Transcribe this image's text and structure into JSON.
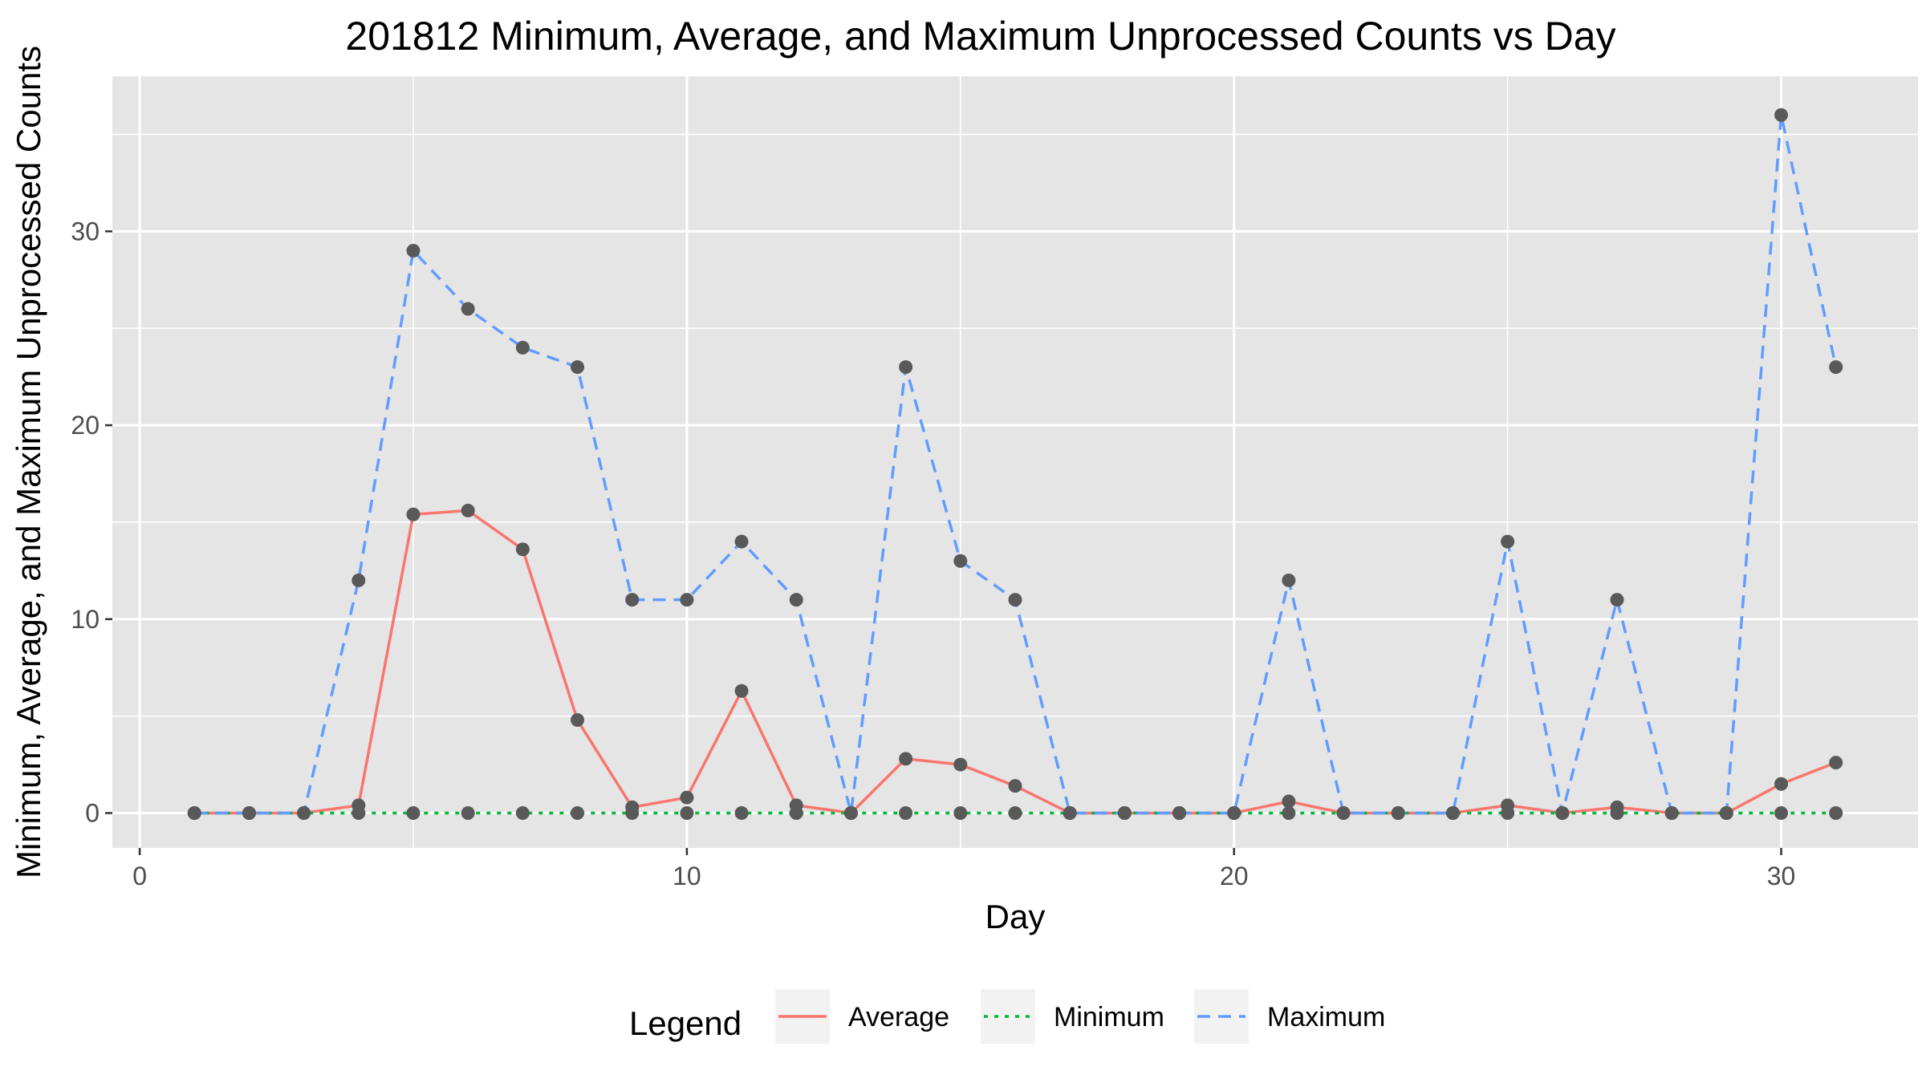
{
  "chart_data": {
    "type": "line",
    "title": "201812 Minimum, Average, and Maximum Unprocessed Counts vs Day",
    "xlabel": "Day",
    "ylabel": "Minimum, Average, and Maximum Unprocessed Counts",
    "xlim": [
      -0.5,
      32.5
    ],
    "ylim": [
      -1.8,
      38
    ],
    "x_ticks": [
      0,
      10,
      20,
      30
    ],
    "y_ticks": [
      0,
      10,
      20,
      30
    ],
    "grid": true,
    "legend": {
      "title": "Legend",
      "position": "bottom"
    },
    "x": [
      1,
      2,
      3,
      4,
      5,
      6,
      7,
      8,
      9,
      10,
      11,
      12,
      13,
      14,
      15,
      16,
      17,
      18,
      19,
      20,
      21,
      22,
      23,
      24,
      25,
      26,
      27,
      28,
      29,
      30,
      31
    ],
    "series": [
      {
        "name": "Average",
        "color": "#F8766D",
        "dash": "solid",
        "values": [
          0,
          0,
          0,
          0.4,
          15.4,
          15.6,
          13.6,
          4.8,
          0.3,
          0.8,
          6.3,
          0.4,
          0,
          2.8,
          2.5,
          1.4,
          0,
          0,
          0,
          0,
          0.6,
          0,
          0,
          0,
          0.4,
          0,
          0.3,
          0,
          0,
          1.5,
          2.6
        ]
      },
      {
        "name": "Minimum",
        "color": "#00BA38",
        "dash": "dotted",
        "values": [
          0,
          0,
          0,
          0,
          0,
          0,
          0,
          0,
          0,
          0,
          0,
          0,
          0,
          0,
          0,
          0,
          0,
          0,
          0,
          0,
          0,
          0,
          0,
          0,
          0,
          0,
          0,
          0,
          0,
          0,
          0
        ]
      },
      {
        "name": "Maximum",
        "color": "#619CFF",
        "dash": "dashed",
        "values": [
          0,
          0,
          0,
          12,
          29,
          26,
          24,
          23,
          11,
          11,
          14,
          11,
          0,
          23,
          13,
          11,
          0,
          0,
          0,
          0,
          12,
          0,
          0,
          0,
          14,
          0,
          11,
          0,
          0,
          36,
          23
        ]
      }
    ]
  }
}
